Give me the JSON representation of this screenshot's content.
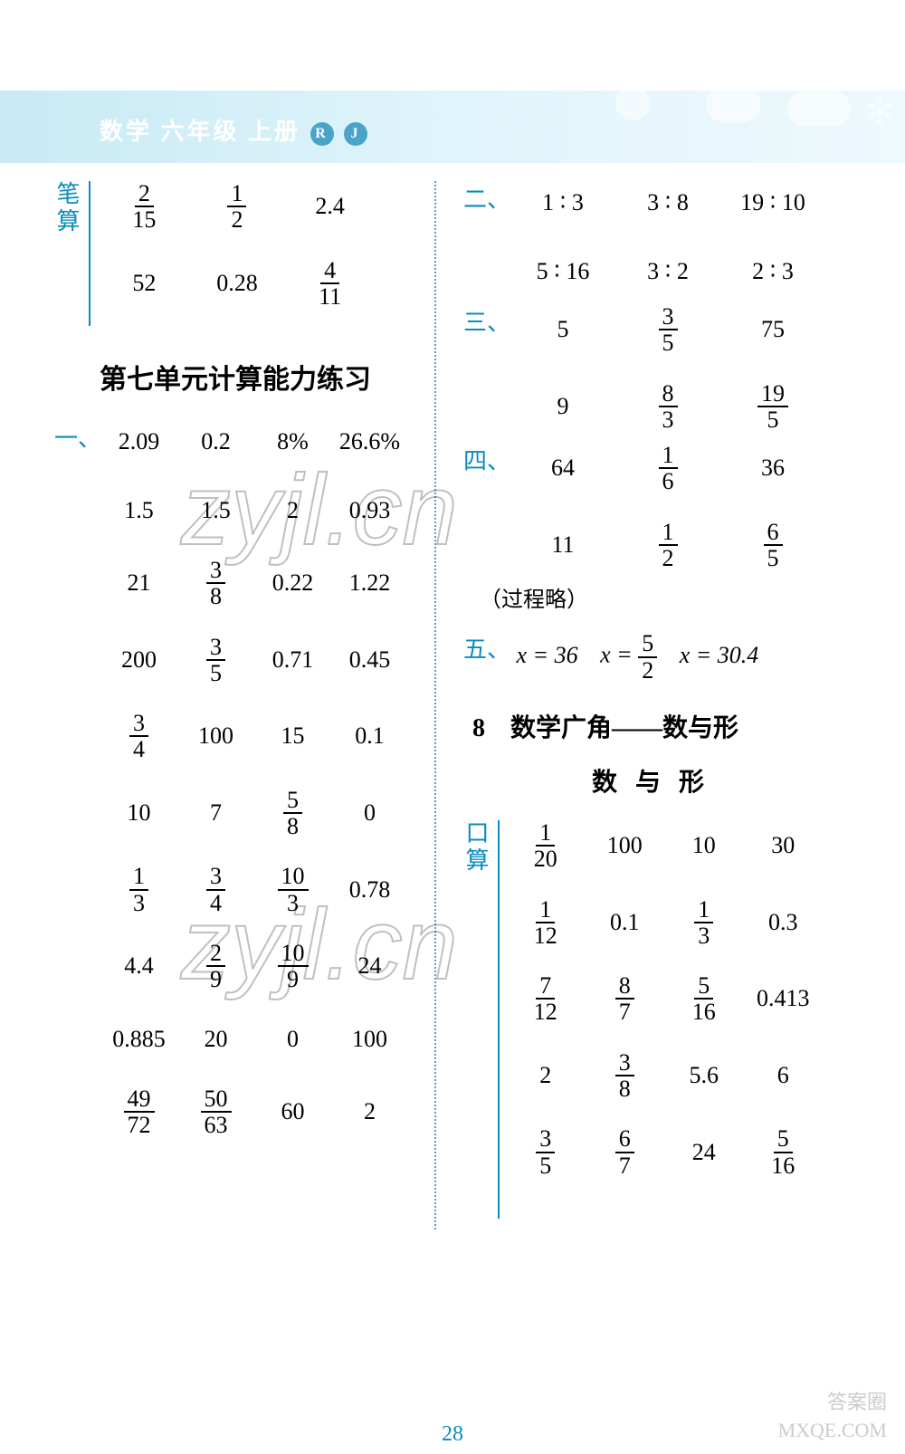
{
  "header": {
    "title_prefix": "数学  六年级 上册",
    "badge1": "R",
    "badge2": "J"
  },
  "colors": {
    "accent": "#0a8bbf",
    "band_from": "#c8eaf5",
    "band_to": "#eef9fd"
  },
  "left": {
    "bisuan": {
      "label": "笔算",
      "rows": [
        [
          {
            "f": [
              "2",
              "15"
            ]
          },
          {
            "f": [
              "1",
              "2"
            ]
          },
          {
            "t": "2.4"
          }
        ],
        [
          {
            "t": "52"
          },
          {
            "t": "0.28"
          },
          {
            "f": [
              "4",
              "11"
            ]
          }
        ]
      ]
    },
    "unit_title": "第七单元计算能力练习",
    "sec1": {
      "label": "一、",
      "rows": [
        [
          {
            "t": "2.09"
          },
          {
            "t": "0.2"
          },
          {
            "t": "8%"
          },
          {
            "t": "26.6%"
          }
        ],
        [
          {
            "t": "1.5"
          },
          {
            "t": "1.5"
          },
          {
            "t": "2"
          },
          {
            "t": "0.93"
          }
        ],
        [
          {
            "t": "21"
          },
          {
            "f": [
              "3",
              "8"
            ]
          },
          {
            "t": "0.22"
          },
          {
            "t": "1.22"
          }
        ],
        [
          {
            "t": "200"
          },
          {
            "f": [
              "3",
              "5"
            ]
          },
          {
            "t": "0.71"
          },
          {
            "t": "0.45"
          }
        ],
        [
          {
            "f": [
              "3",
              "4"
            ]
          },
          {
            "t": "100"
          },
          {
            "t": "15"
          },
          {
            "t": "0.1"
          }
        ],
        [
          {
            "t": "10"
          },
          {
            "t": "7"
          },
          {
            "f": [
              "5",
              "8"
            ]
          },
          {
            "t": "0"
          }
        ],
        [
          {
            "f": [
              "1",
              "3"
            ]
          },
          {
            "f": [
              "3",
              "4"
            ]
          },
          {
            "f": [
              "10",
              "3"
            ]
          },
          {
            "t": "0.78"
          }
        ],
        [
          {
            "t": "4.4"
          },
          {
            "f": [
              "2",
              "9"
            ]
          },
          {
            "f": [
              "10",
              "9"
            ]
          },
          {
            "t": "24"
          }
        ],
        [
          {
            "t": "0.885"
          },
          {
            "t": "20"
          },
          {
            "t": "0"
          },
          {
            "t": "100"
          }
        ],
        [
          {
            "f": [
              "49",
              "72"
            ]
          },
          {
            "f": [
              "50",
              "63"
            ]
          },
          {
            "t": "60"
          },
          {
            "t": "2"
          }
        ]
      ]
    }
  },
  "right": {
    "sec2": {
      "label": "二、",
      "rows": [
        [
          {
            "t": "1 ∶ 3"
          },
          {
            "t": "3 ∶ 8"
          },
          {
            "t": "19 ∶ 10"
          }
        ],
        [
          {
            "t": "5 ∶ 16"
          },
          {
            "t": "3 ∶ 2"
          },
          {
            "t": "2 ∶ 3"
          }
        ]
      ]
    },
    "sec3": {
      "label": "三、",
      "rows": [
        [
          {
            "t": "5"
          },
          {
            "f": [
              "3",
              "5"
            ]
          },
          {
            "t": "75"
          }
        ],
        [
          {
            "t": "9"
          },
          {
            "f": [
              "8",
              "3"
            ]
          },
          {
            "f": [
              "19",
              "5"
            ]
          }
        ]
      ]
    },
    "sec4": {
      "label": "四、",
      "rows": [
        [
          {
            "t": "64"
          },
          {
            "f": [
              "1",
              "6"
            ]
          },
          {
            "t": "36"
          }
        ],
        [
          {
            "t": "11"
          },
          {
            "f": [
              "1",
              "2"
            ]
          },
          {
            "f": [
              "6",
              "5"
            ]
          }
        ]
      ],
      "note": "（过程略）"
    },
    "sec5": {
      "label": "五、",
      "items": [
        "x = 36",
        "x =",
        "x = 30.4"
      ],
      "frac": [
        "5",
        "2"
      ]
    },
    "chapter_title": "8　数学广角——数与形",
    "sub_title": "数与形",
    "kousuan": {
      "label": "口算",
      "rows": [
        [
          {
            "f": [
              "1",
              "20"
            ]
          },
          {
            "t": "100"
          },
          {
            "t": "10"
          },
          {
            "t": "30"
          }
        ],
        [
          {
            "f": [
              "1",
              "12"
            ]
          },
          {
            "t": "0.1"
          },
          {
            "f": [
              "1",
              "3"
            ]
          },
          {
            "t": "0.3"
          }
        ],
        [
          {
            "f": [
              "7",
              "12"
            ]
          },
          {
            "f": [
              "8",
              "7"
            ]
          },
          {
            "f": [
              "5",
              "16"
            ]
          },
          {
            "t": "0.413"
          }
        ],
        [
          {
            "t": "2"
          },
          {
            "f": [
              "3",
              "8"
            ]
          },
          {
            "t": "5.6"
          },
          {
            "t": "6"
          }
        ],
        [
          {
            "f": [
              "3",
              "5"
            ]
          },
          {
            "f": [
              "6",
              "7"
            ]
          },
          {
            "t": "24"
          },
          {
            "f": [
              "5",
              "16"
            ]
          }
        ]
      ]
    }
  },
  "page_number": "28",
  "watermark_text": "zyjl.cn",
  "corner_wm_1": "答案圈",
  "corner_wm_2": "MXQE.COM"
}
